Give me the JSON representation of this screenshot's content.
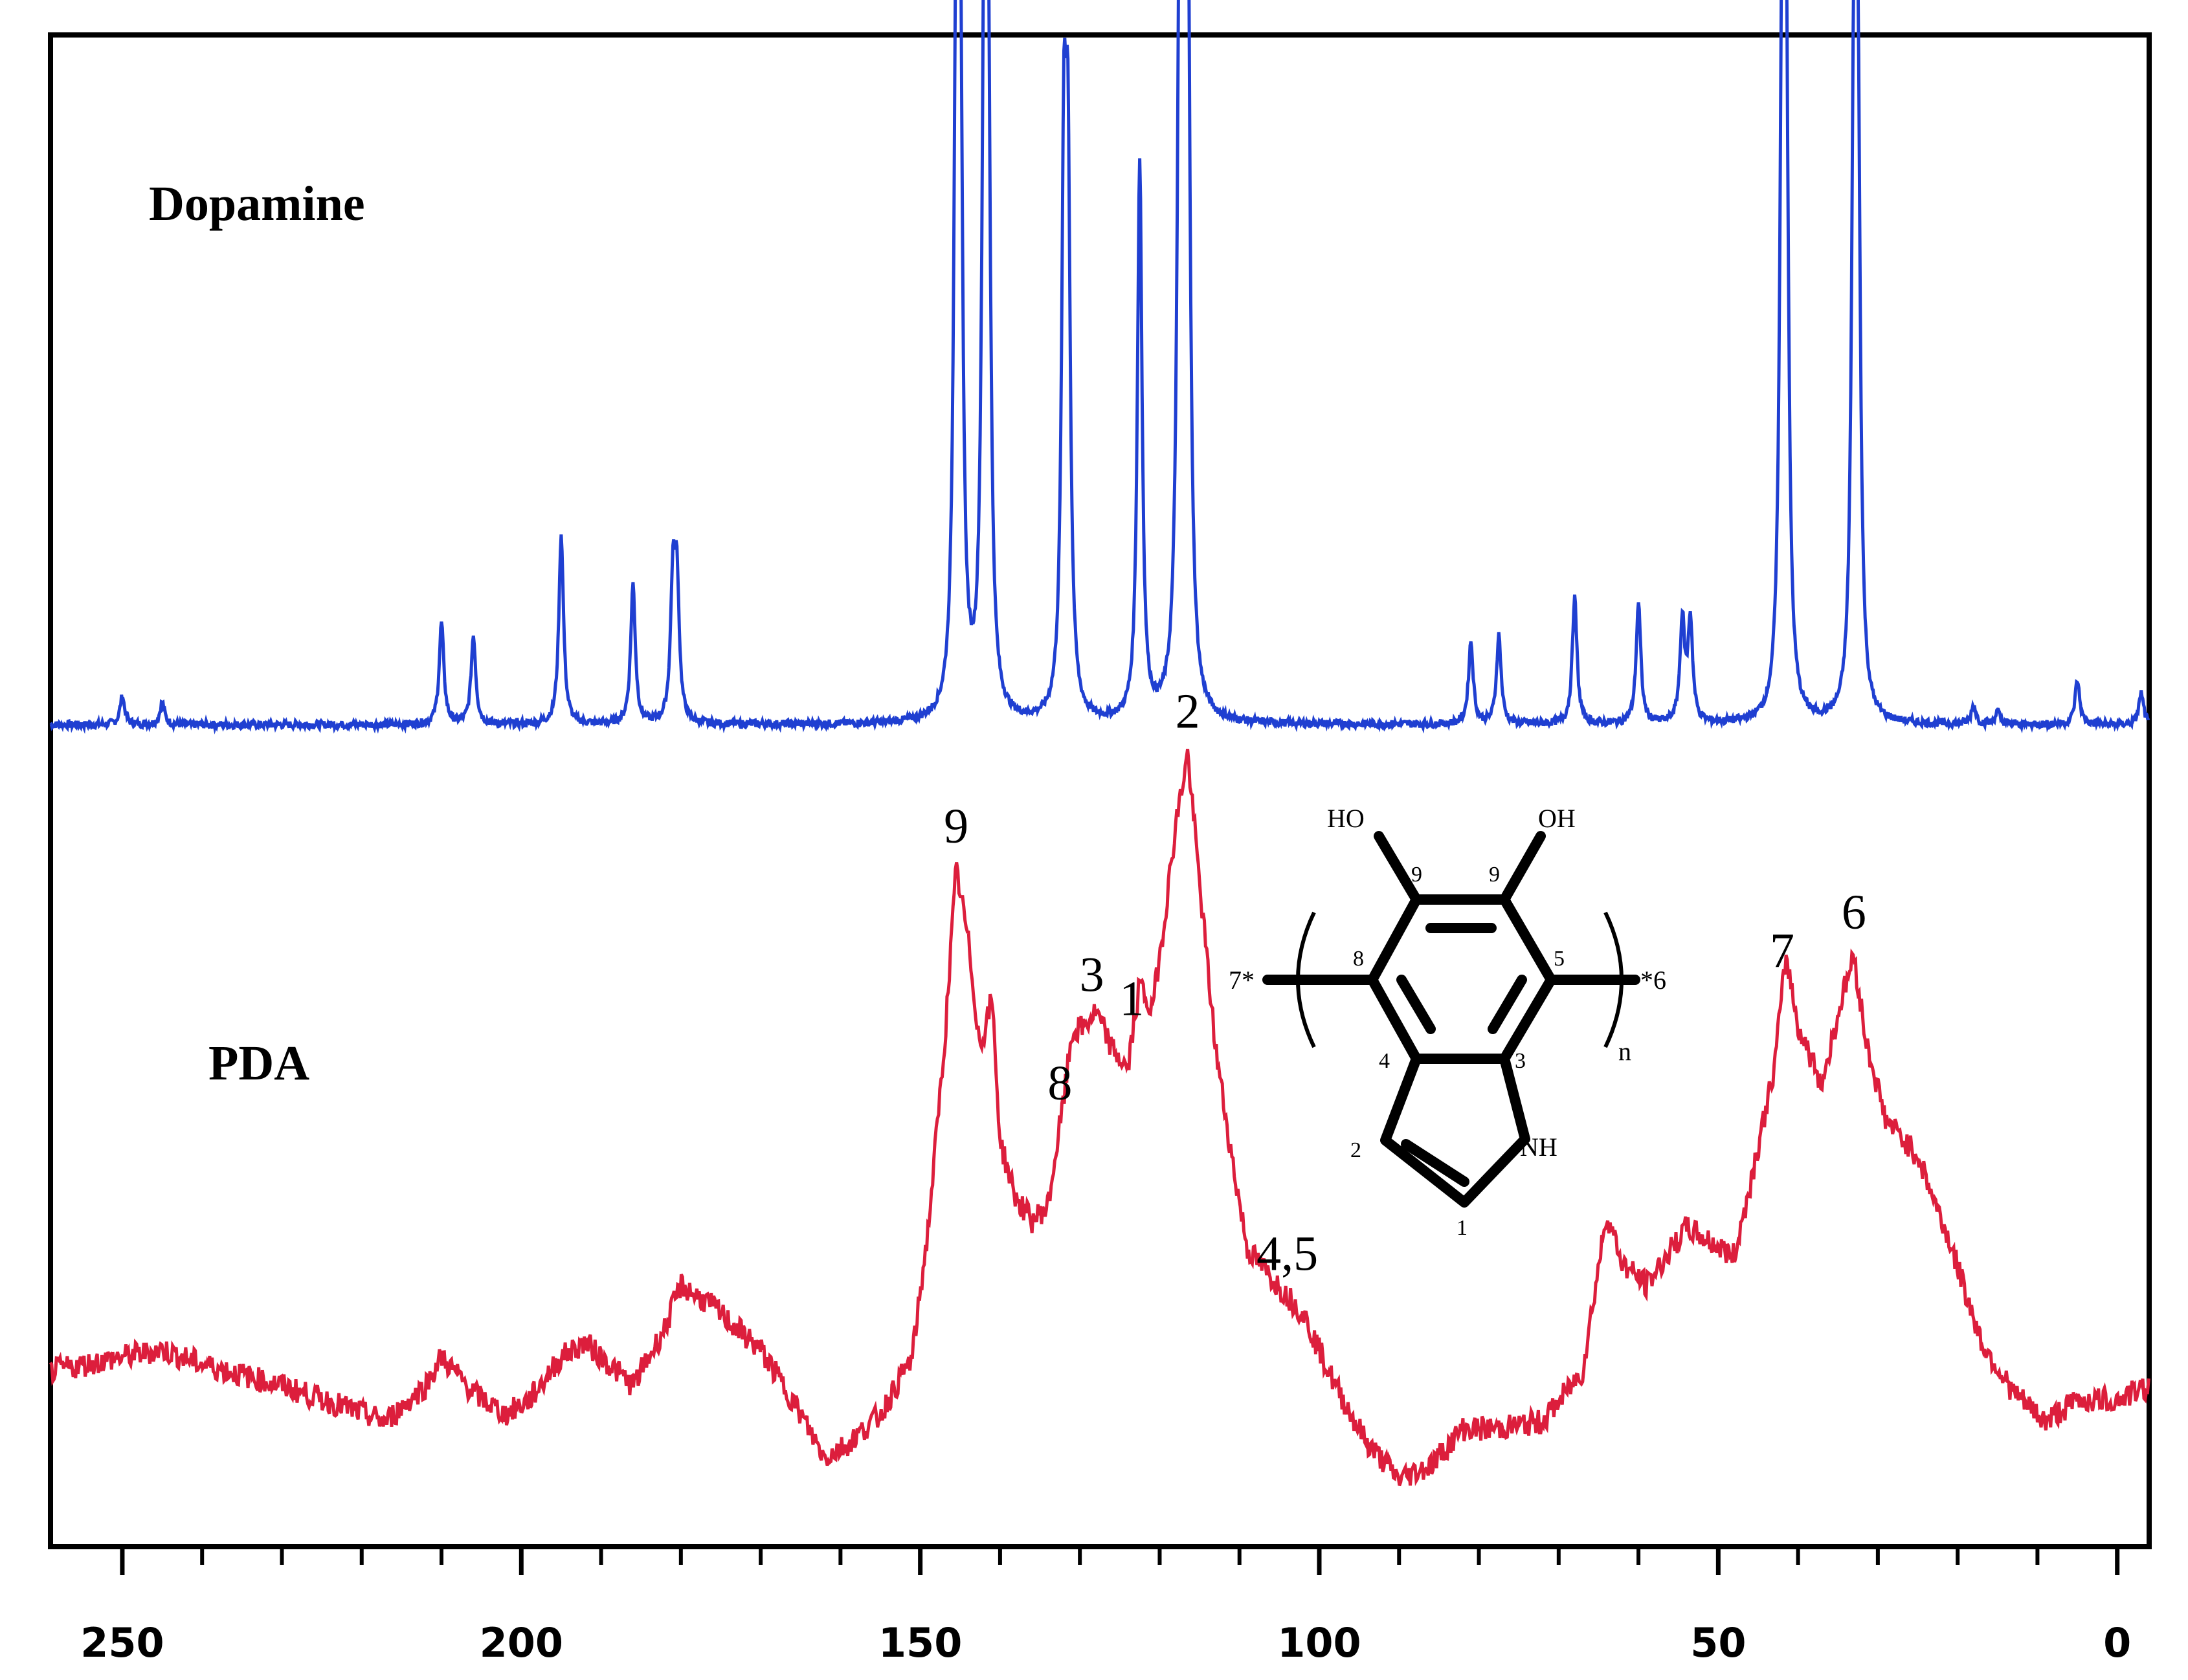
{
  "chart_data": {
    "type": "line",
    "title": "",
    "xlabel": "",
    "ylabel": "",
    "x_reversed": true,
    "xlim": [
      259,
      -4
    ],
    "x_ticks": [
      250,
      200,
      150,
      100,
      50,
      0
    ],
    "x_tick_labels": [
      "250",
      "200",
      "150",
      "100",
      "50",
      "0"
    ],
    "x_minor_ticks": [
      240,
      230,
      220,
      210,
      190,
      180,
      170,
      160,
      140,
      130,
      120,
      110,
      90,
      80,
      70,
      60,
      40,
      30,
      20,
      10
    ],
    "grid": false,
    "series": [
      {
        "name": "Dopamine",
        "color": "#1f3fd1",
        "baseline": 0,
        "peaks": [
          [
            250,
            0.045
          ],
          [
            245,
            0.035
          ],
          [
            210,
            0.16
          ],
          [
            206,
            0.14
          ],
          [
            195,
            0.3
          ],
          [
            186,
            0.22
          ],
          [
            181,
            0.21
          ],
          [
            180.5,
            0.21
          ],
          [
            145.5,
            1.0
          ],
          [
            145,
            0.98
          ],
          [
            142,
            0.98
          ],
          [
            141.5,
            0.95
          ],
          [
            132,
            0.8
          ],
          [
            131.5,
            0.78
          ],
          [
            122.5,
            0.88
          ],
          [
            117.5,
            0.98
          ],
          [
            117,
            1.01
          ],
          [
            116.5,
            1.08
          ],
          [
            81,
            0.13
          ],
          [
            77.5,
            0.14
          ],
          [
            68,
            0.2
          ],
          [
            60,
            0.19
          ],
          [
            54.5,
            0.16
          ],
          [
            53.5,
            0.16
          ],
          [
            42,
            0.99
          ],
          [
            41.5,
            0.95
          ],
          [
            33,
            0.93
          ],
          [
            32.5,
            0.88
          ],
          [
            18,
            0.03
          ],
          [
            15,
            0.02
          ],
          [
            5,
            0.07
          ],
          [
            -3,
            0.05
          ]
        ]
      },
      {
        "name": "PDA",
        "color": "#dc1e3c",
        "points": [
          [
            259,
            0.1
          ],
          [
            250,
            0.12
          ],
          [
            245,
            0.13
          ],
          [
            240,
            0.11
          ],
          [
            230,
            0.08
          ],
          [
            222,
            0.05
          ],
          [
            217,
            0.03
          ],
          [
            212,
            0.08
          ],
          [
            210,
            0.12
          ],
          [
            206,
            0.07
          ],
          [
            202,
            0.04
          ],
          [
            199,
            0.06
          ],
          [
            195,
            0.12
          ],
          [
            192,
            0.14
          ],
          [
            188,
            0.1
          ],
          [
            186,
            0.08
          ],
          [
            182,
            0.16
          ],
          [
            180,
            0.22
          ],
          [
            176,
            0.19
          ],
          [
            170,
            0.13
          ],
          [
            166,
            0.06
          ],
          [
            162,
            -0.02
          ],
          [
            159,
            0.0
          ],
          [
            155,
            0.04
          ],
          [
            151,
            0.12
          ],
          [
            149,
            0.3
          ],
          [
            147,
            0.55
          ],
          [
            145.5,
            0.8
          ],
          [
            144,
            0.7
          ],
          [
            142.5,
            0.55
          ],
          [
            141,
            0.62
          ],
          [
            140,
            0.42
          ],
          [
            138,
            0.34
          ],
          [
            136,
            0.31
          ],
          [
            134,
            0.33
          ],
          [
            132,
            0.48
          ],
          [
            131,
            0.57
          ],
          [
            129.5,
            0.58
          ],
          [
            128,
            0.6
          ],
          [
            126,
            0.55
          ],
          [
            124,
            0.52
          ],
          [
            122.5,
            0.64
          ],
          [
            121,
            0.6
          ],
          [
            119.5,
            0.72
          ],
          [
            118,
            0.86
          ],
          [
            116.5,
            0.96
          ],
          [
            115,
            0.78
          ],
          [
            113,
            0.55
          ],
          [
            111,
            0.4
          ],
          [
            109,
            0.27
          ],
          [
            106,
            0.23
          ],
          [
            102,
            0.18
          ],
          [
            98,
            0.08
          ],
          [
            94,
            0.0
          ],
          [
            90,
            -0.05
          ],
          [
            86,
            -0.03
          ],
          [
            82,
            0.02
          ],
          [
            78,
            0.02
          ],
          [
            72,
            0.03
          ],
          [
            67,
            0.1
          ],
          [
            64,
            0.32
          ],
          [
            62,
            0.25
          ],
          [
            59,
            0.22
          ],
          [
            54,
            0.3
          ],
          [
            51,
            0.28
          ],
          [
            48,
            0.26
          ],
          [
            46,
            0.36
          ],
          [
            43,
            0.52
          ],
          [
            41.5,
            0.68
          ],
          [
            40,
            0.58
          ],
          [
            37,
            0.5
          ],
          [
            34.5,
            0.62
          ],
          [
            33,
            0.68
          ],
          [
            31.5,
            0.56
          ],
          [
            29,
            0.45
          ],
          [
            25,
            0.4
          ],
          [
            21,
            0.28
          ],
          [
            17,
            0.14
          ],
          [
            13,
            0.07
          ],
          [
            9,
            0.03
          ],
          [
            5,
            0.06
          ],
          [
            0,
            0.06
          ],
          [
            -4,
            0.08
          ]
        ]
      }
    ],
    "peak_labels": [
      {
        "text": "9",
        "x": 145.5
      },
      {
        "text": "8",
        "x": 132.5
      },
      {
        "text": "3",
        "x": 128.5
      },
      {
        "text": "1",
        "x": 123.5
      },
      {
        "text": "2",
        "x": 116.5
      },
      {
        "text": "4,5",
        "x": 104
      },
      {
        "text": "7",
        "x": 42
      },
      {
        "text": "6",
        "x": 33
      }
    ]
  },
  "structure": {
    "labels": {
      "ho": "HO",
      "oh": "OH",
      "nh": "NH",
      "n": "n",
      "end_left": "7*",
      "end_right": "*6"
    },
    "atom_numbers": [
      "9",
      "9",
      "8",
      "5",
      "4",
      "3",
      "2",
      "1"
    ]
  }
}
